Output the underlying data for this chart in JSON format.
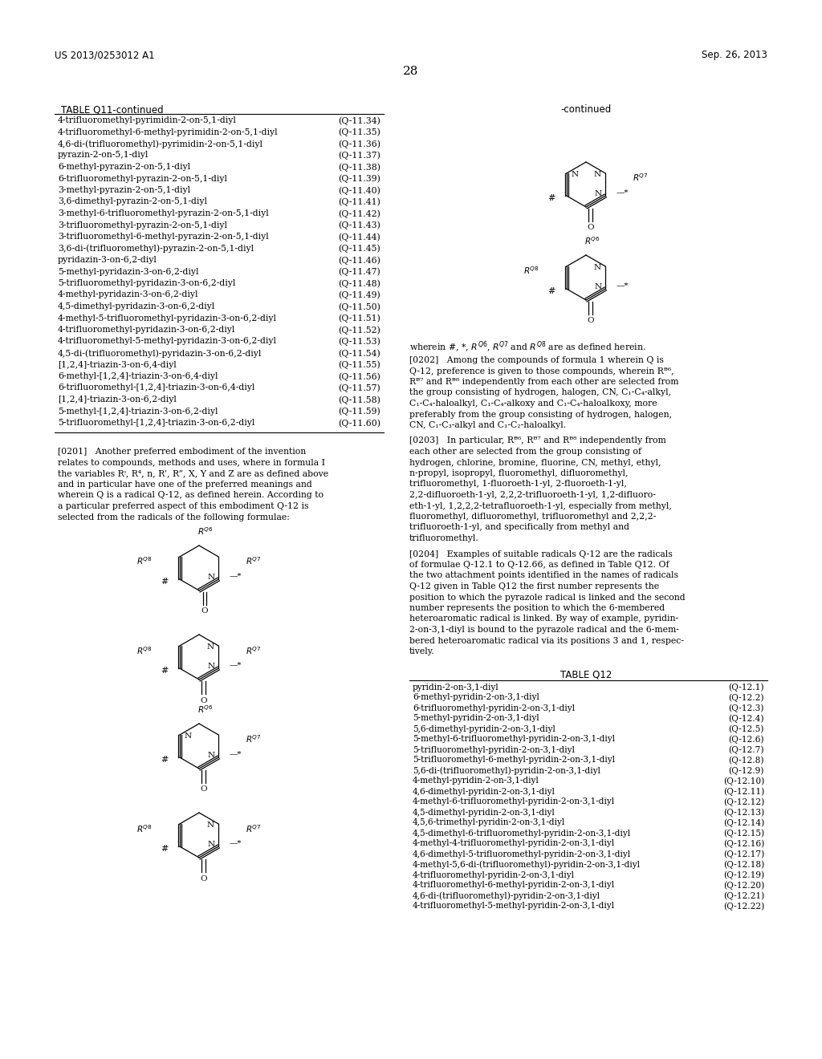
{
  "header_left": "US 2013/0253012 A1",
  "header_right": "Sep. 26, 2013",
  "page_number": "28",
  "table_title_left": "TABLE Q11-continued",
  "table_title_right": "-continued",
  "table_q11_rows": [
    [
      "4-trifluoromethyl-pyrimidin-2-on-5,1-diyl",
      "(Q-11.34)"
    ],
    [
      "4-trifluoromethyl-6-methyl-pyrimidin-2-on-5,1-diyl",
      "(Q-11.35)"
    ],
    [
      "4,6-di-(trifluoromethyl)-pyrimidin-2-on-5,1-diyl",
      "(Q-11.36)"
    ],
    [
      "pyrazin-2-on-5,1-diyl",
      "(Q-11.37)"
    ],
    [
      "6-methyl-pyrazin-2-on-5,1-diyl",
      "(Q-11.38)"
    ],
    [
      "6-trifluoromethyl-pyrazin-2-on-5,1-diyl",
      "(Q-11.39)"
    ],
    [
      "3-methyl-pyrazin-2-on-5,1-diyl",
      "(Q-11.40)"
    ],
    [
      "3,6-dimethyl-pyrazin-2-on-5,1-diyl",
      "(Q-11.41)"
    ],
    [
      "3-methyl-6-trifluoromethyl-pyrazin-2-on-5,1-diyl",
      "(Q-11.42)"
    ],
    [
      "3-trifluoromethyl-pyrazin-2-on-5,1-diyl",
      "(Q-11.43)"
    ],
    [
      "3-trifluoromethyl-6-methyl-pyrazin-2-on-5,1-diyl",
      "(Q-11.44)"
    ],
    [
      "3,6-di-(trifluoromethyl)-pyrazin-2-on-5,1-diyl",
      "(Q-11.45)"
    ],
    [
      "pyridazin-3-on-6,2-diyl",
      "(Q-11.46)"
    ],
    [
      "5-methyl-pyridazin-3-on-6,2-diyl",
      "(Q-11.47)"
    ],
    [
      "5-trifluoromethyl-pyridazin-3-on-6,2-diyl",
      "(Q-11.48)"
    ],
    [
      "4-methyl-pyridazin-3-on-6,2-diyl",
      "(Q-11.49)"
    ],
    [
      "4,5-dimethyl-pyridazin-3-on-6,2-diyl",
      "(Q-11.50)"
    ],
    [
      "4-methyl-5-trifluoromethyl-pyridazin-3-on-6,2-diyl",
      "(Q-11.51)"
    ],
    [
      "4-trifluoromethyl-pyridazin-3-on-6,2-diyl",
      "(Q-11.52)"
    ],
    [
      "4-trifluoromethyl-5-methyl-pyridazin-3-on-6,2-diyl",
      "(Q-11.53)"
    ],
    [
      "4,5-di-(trifluoromethyl)-pyridazin-3-on-6,2-diyl",
      "(Q-11.54)"
    ],
    [
      "[1,2,4]-triazin-3-on-6,4-diyl",
      "(Q-11.55)"
    ],
    [
      "6-methyl-[1,2,4]-triazin-3-on-6,4-diyl",
      "(Q-11.56)"
    ],
    [
      "6-trifluoromethyl-[1,2,4]-triazin-3-on-6,4-diyl",
      "(Q-11.57)"
    ],
    [
      "[1,2,4]-triazin-3-on-6,2-diyl",
      "(Q-11.58)"
    ],
    [
      "5-methyl-[1,2,4]-triazin-3-on-6,2-diyl",
      "(Q-11.59)"
    ],
    [
      "5-trifluoromethyl-[1,2,4]-triazin-3-on-6,2-diyl",
      "(Q-11.60)"
    ]
  ],
  "table_q12_title": "TABLE Q12",
  "table_q12_rows": [
    [
      "pyridin-2-on-3,1-diyl",
      "(Q-12.1)"
    ],
    [
      "6-methyl-pyridin-2-on-3,1-diyl",
      "(Q-12.2)"
    ],
    [
      "6-trifluoromethyl-pyridin-2-on-3,1-diyl",
      "(Q-12.3)"
    ],
    [
      "5-methyl-pyridin-2-on-3,1-diyl",
      "(Q-12.4)"
    ],
    [
      "5,6-dimethyl-pyridin-2-on-3,1-diyl",
      "(Q-12.5)"
    ],
    [
      "5-methyl-6-trifluoromethyl-pyridin-2-on-3,1-diyl",
      "(Q-12.6)"
    ],
    [
      "5-trifluoromethyl-pyridin-2-on-3,1-diyl",
      "(Q-12.7)"
    ],
    [
      "5-trifluoromethyl-6-methyl-pyridin-2-on-3,1-diyl",
      "(Q-12.8)"
    ],
    [
      "5,6-di-(trifluoromethyl)-pyridin-2-on-3,1-diyl",
      "(Q-12.9)"
    ],
    [
      "4-methyl-pyridin-2-on-3,1-diyl",
      "(Q-12.10)"
    ],
    [
      "4,6-dimethyl-pyridin-2-on-3,1-diyl",
      "(Q-12.11)"
    ],
    [
      "4-methyl-6-trifluoromethyl-pyridin-2-on-3,1-diyl",
      "(Q-12.12)"
    ],
    [
      "4,5-dimethyl-pyridin-2-on-3,1-diyl",
      "(Q-12.13)"
    ],
    [
      "4,5,6-trimethyl-pyridin-2-on-3,1-diyl",
      "(Q-12.14)"
    ],
    [
      "4,5-dimethyl-6-trifluoromethyl-pyridin-2-on-3,1-diyl",
      "(Q-12.15)"
    ],
    [
      "4-methyl-4-trifluoromethyl-pyridin-2-on-3,1-diyl",
      "(Q-12.16)"
    ],
    [
      "4,6-dimethyl-5-trifluoromethyl-pyridin-2-on-3,1-diyl",
      "(Q-12.17)"
    ],
    [
      "4-methyl-5,6-di-(trifluoromethyl)-pyridin-2-on-3,1-diyl",
      "(Q-12.18)"
    ],
    [
      "4-trifluoromethyl-pyridin-2-on-3,1-diyl",
      "(Q-12.19)"
    ],
    [
      "4-trifluoromethyl-6-methyl-pyridin-2-on-3,1-diyl",
      "(Q-12.20)"
    ],
    [
      "4,6-di-(trifluoromethyl)-pyridin-2-on-3,1-diyl",
      "(Q-12.21)"
    ],
    [
      "4-trifluoromethyl-5-methyl-pyridin-2-on-3,1-diyl",
      "(Q-12.22)"
    ]
  ],
  "background_color": "#ffffff",
  "text_color": "#000000"
}
